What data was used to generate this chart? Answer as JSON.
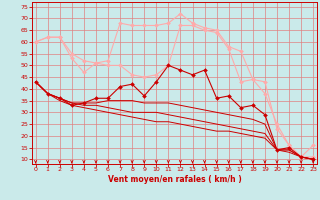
{
  "xlabel": "Vent moyen/en rafales ( km/h )",
  "background_color": "#caeaea",
  "grid_color": "#e08080",
  "text_color": "#cc0000",
  "x": [
    0,
    1,
    2,
    3,
    4,
    5,
    6,
    7,
    8,
    9,
    10,
    11,
    12,
    13,
    14,
    15,
    16,
    17,
    18,
    19,
    20,
    21,
    22,
    23
  ],
  "lines": [
    {
      "y": [
        60,
        62,
        62,
        55,
        52,
        51,
        52,
        68,
        67,
        67,
        67,
        68,
        72,
        68,
        66,
        65,
        58,
        56,
        44,
        38,
        25,
        16,
        11,
        16
      ],
      "color": "#ffaaaa",
      "lw": 0.8,
      "marker": "D",
      "ms": 2.0
    },
    {
      "y": [
        60,
        62,
        62,
        53,
        47,
        51,
        50,
        50,
        46,
        45,
        46,
        50,
        67,
        67,
        65,
        64,
        57,
        43,
        44,
        43,
        23,
        16,
        11,
        11
      ],
      "color": "#ffaaaa",
      "lw": 0.8,
      "marker": "D",
      "ms": 2.0
    },
    {
      "y": [
        43,
        38,
        36,
        33,
        34,
        36,
        36,
        41,
        42,
        37,
        43,
        50,
        48,
        46,
        48,
        36,
        37,
        32,
        33,
        29,
        14,
        15,
        11,
        10
      ],
      "color": "#cc0000",
      "lw": 0.8,
      "marker": "D",
      "ms": 2.0
    },
    {
      "y": [
        43,
        38,
        36,
        34,
        34,
        34,
        35,
        35,
        35,
        34,
        34,
        34,
        33,
        32,
        31,
        30,
        29,
        28,
        27,
        25,
        14,
        14,
        11,
        10
      ],
      "color": "#cc0000",
      "lw": 0.7,
      "marker": null,
      "ms": 0
    },
    {
      "y": [
        43,
        38,
        36,
        34,
        33,
        33,
        32,
        31,
        30,
        30,
        30,
        29,
        28,
        27,
        26,
        25,
        24,
        23,
        22,
        21,
        14,
        14,
        11,
        10
      ],
      "color": "#cc0000",
      "lw": 0.7,
      "marker": null,
      "ms": 0
    },
    {
      "y": [
        43,
        38,
        35,
        33,
        32,
        31,
        30,
        29,
        28,
        27,
        26,
        26,
        25,
        24,
        23,
        22,
        22,
        21,
        20,
        19,
        14,
        13,
        11,
        10
      ],
      "color": "#cc0000",
      "lw": 0.7,
      "marker": null,
      "ms": 0
    }
  ],
  "yticks": [
    10,
    15,
    20,
    25,
    30,
    35,
    40,
    45,
    50,
    55,
    60,
    65,
    70,
    75
  ],
  "xticks": [
    0,
    1,
    2,
    3,
    4,
    5,
    6,
    7,
    8,
    9,
    10,
    11,
    12,
    13,
    14,
    15,
    16,
    17,
    18,
    19,
    20,
    21,
    22,
    23
  ],
  "ylim": [
    8,
    77
  ],
  "xlim": [
    -0.3,
    23.3
  ]
}
